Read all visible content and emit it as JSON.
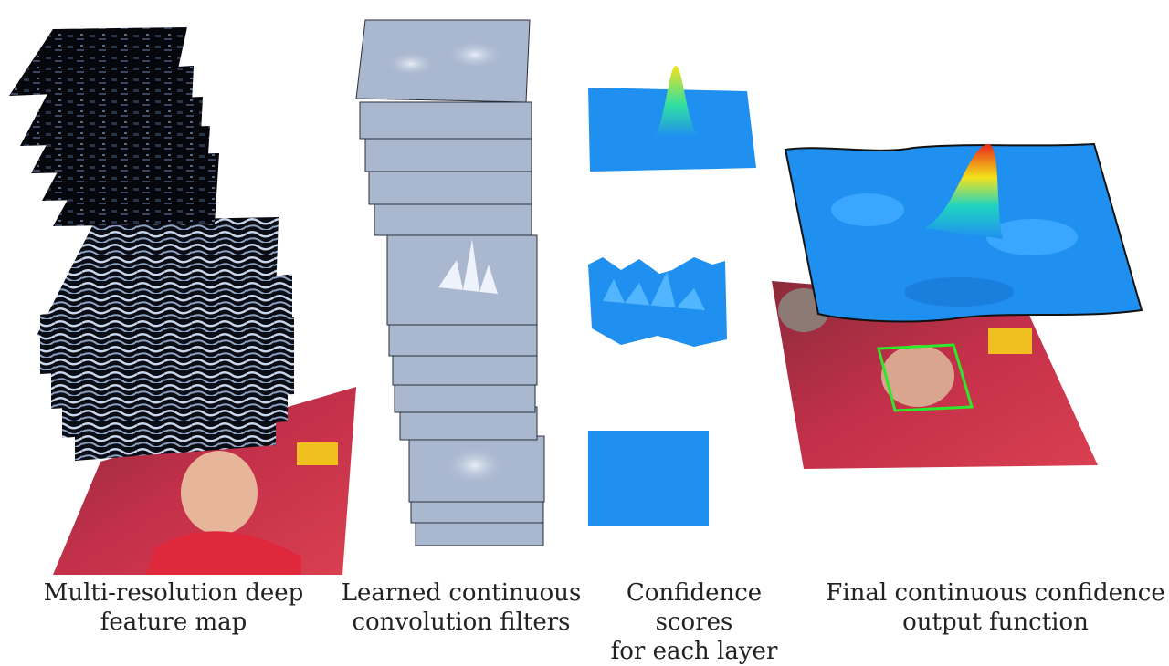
{
  "captions": {
    "features": {
      "line1": "Multi-resolution deep",
      "line2": "feature map"
    },
    "filters": {
      "line1": "Learned continuous",
      "line2": "convolution filters"
    },
    "scores": {
      "line1": "Confidence scores",
      "line2": "for each layer"
    },
    "output": {
      "line1": "Final continuous confidence",
      "line2": "output function"
    }
  },
  "colors": {
    "feature_dark": "#05070d",
    "feature_light": "#c9d6ec",
    "filter_surface": "#a9b7cf",
    "score_blue": "#1f8ff0",
    "peak_yellow": "#f4e21a",
    "peak_red": "#e8261c",
    "bbox_green": "#2ee82a",
    "jersey_red": "#d8263a"
  },
  "icons": [
    "feature-map-stack",
    "filter-stack",
    "confidence-surface",
    "tracking-frame"
  ]
}
